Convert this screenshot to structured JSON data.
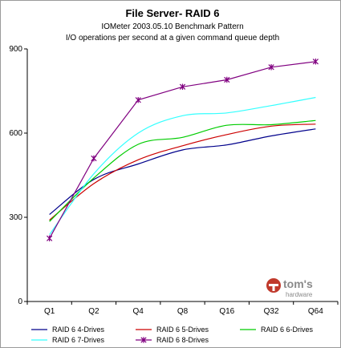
{
  "chart_data": {
    "type": "line",
    "title": "File Server- RAID 6",
    "subtitle": "IOMeter 2003.05.10 Benchmark Pattern",
    "subtitle2": "I/O operations per second at a given command queue depth",
    "categories": [
      "Q1",
      "Q2",
      "Q4",
      "Q8",
      "Q16",
      "Q32",
      "Q64"
    ],
    "ylim": [
      0,
      900
    ],
    "yticks": [
      "0",
      "300",
      "600",
      "900"
    ],
    "grid": false,
    "legend_position": "bottom",
    "series": [
      {
        "name": "RAID 6 4-Drives",
        "color": "#00008b",
        "marker": "none",
        "values": [
          310,
          435,
          490,
          540,
          558,
          590,
          615
        ]
      },
      {
        "name": "RAID 6 5-Drives",
        "color": "#cc0000",
        "marker": "none",
        "values": [
          290,
          420,
          505,
          555,
          595,
          625,
          632
        ]
      },
      {
        "name": "RAID 6 6-Drives",
        "color": "#00cc00",
        "marker": "none",
        "values": [
          285,
          440,
          560,
          585,
          628,
          630,
          645
        ]
      },
      {
        "name": "RAID 6 7-Drives",
        "color": "#33ffff",
        "marker": "none",
        "values": [
          238,
          455,
          600,
          662,
          672,
          698,
          727
        ]
      },
      {
        "name": "RAID 6 8-Drives",
        "color": "#800080",
        "marker": "star",
        "values": [
          225,
          510,
          718,
          765,
          790,
          835,
          855
        ]
      }
    ]
  },
  "watermark": {
    "text": "tom's hardware",
    "color": "#8a8a8a"
  }
}
